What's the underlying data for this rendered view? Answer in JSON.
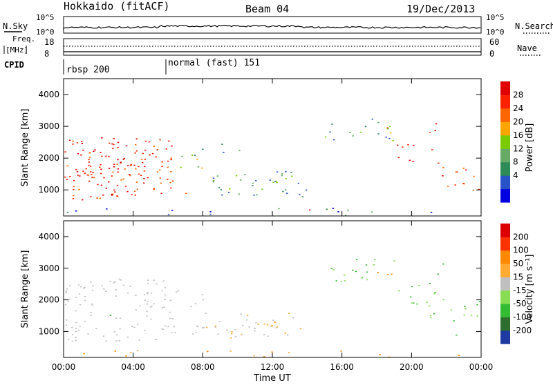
{
  "header": {
    "station": "Hokkaido (fitACF)",
    "beam": "Beam 04",
    "date": "19/Dec/2013"
  },
  "strips": {
    "nsky_label": "N.Sky",
    "nsearch_label": "N.Search",
    "freq_label_1": "Freq.",
    "freq_label_2": "[MHz]",
    "nave_label": "Nave",
    "cpid_label": "CPID",
    "nsky_ticks": [
      "10^5",
      "10^0"
    ],
    "nsearch_ticks": [
      "10^5",
      "10^0"
    ],
    "freq_ticks": [
      "18",
      "8"
    ],
    "nave_ticks": [
      "60",
      "0"
    ],
    "cpid_segments": [
      {
        "label": "rbsp 200",
        "start_hour": 0
      },
      {
        "label": "normal (fast) 151",
        "start_hour": 6
      }
    ]
  },
  "chart_data": [
    {
      "type": "heatmap",
      "name": "power",
      "xlabel": "",
      "ylabel": "Slant Range [km]",
      "xlim": [
        0,
        24
      ],
      "ylim": [
        180,
        4500
      ],
      "yticks": [
        "4000",
        "3000",
        "2000",
        "1000"
      ],
      "colorbar_label": "Power [dB]",
      "colorbar_ticks": [
        "28",
        "24",
        "20",
        "16",
        "12",
        "8",
        "4"
      ]
    },
    {
      "type": "heatmap",
      "name": "velocity",
      "xlabel": "Time UT",
      "ylabel": "Slant Range [km]",
      "xlim": [
        0,
        24
      ],
      "ylim": [
        180,
        4500
      ],
      "xticks": [
        "00:00",
        "04:00",
        "08:00",
        "12:00",
        "16:00",
        "20:00",
        "00:00"
      ],
      "yticks": [
        "4000",
        "3000",
        "2000",
        "1000"
      ],
      "colorbar_label": "Velocity [m s⁻¹]",
      "colorbar_ticks": [
        "200",
        "100",
        "50",
        "15",
        "-15",
        "-50",
        "-100",
        "-200"
      ]
    }
  ],
  "colors": {
    "power_scale": [
      "#0000e0",
      "#2a52c8",
      "#2e8b57",
      "#66aa66",
      "#7acc00",
      "#ffa500",
      "#ff6600",
      "#ff2200",
      "#e00000"
    ],
    "velocity_scale": [
      "#1e3aa0",
      "#2e6e2e",
      "#33bb33",
      "#88dd55",
      "#c0c0c0",
      "#ffaa33",
      "#ff8800",
      "#ff3300",
      "#dd0000"
    ],
    "ground_scatter": "#c0c0c0"
  }
}
